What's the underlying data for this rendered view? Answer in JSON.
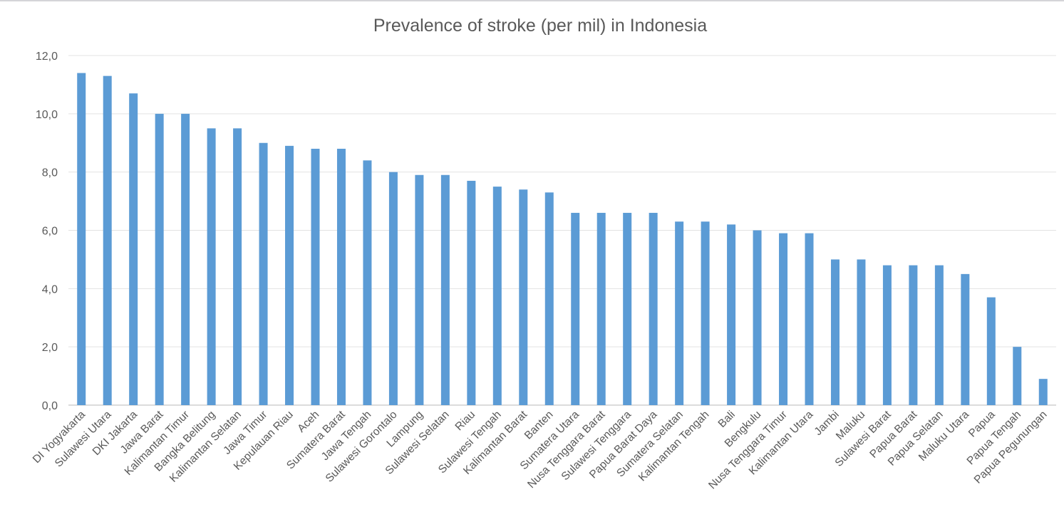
{
  "chart_data": {
    "type": "bar",
    "title": "Prevalence of stroke (per mil) in Indonesia",
    "xlabel": "",
    "ylabel": "",
    "ylim": [
      0,
      12
    ],
    "yticks": [
      "0,0",
      "2,0",
      "4,0",
      "6,0",
      "8,0",
      "10,0",
      "12,0"
    ],
    "grid": true,
    "legend": "none",
    "bar_color": "#5b9bd5",
    "categories": [
      "DI Yogyakarta",
      "Sulawesi Utara",
      "DKI Jakarta",
      "Jawa Barat",
      "Kalimantan Timur",
      "Bangka Belitung",
      "Kalimantan Selatan",
      "Jawa Timur",
      "Kepulauan Riau",
      "Aceh",
      "Sumatera Barat",
      "Jawa Tengah",
      "Sulawesi Gorontalo",
      "Lampung",
      "Sulawesi Selatan",
      "Riau",
      "Sulawesi Tengah",
      "Kalimantan Barat",
      "Banten",
      "Sumatera Utara",
      "Nusa Tenggara Barat",
      "Sulawesi Tenggara",
      "Papua Barat Daya",
      "Sumatera Selatan",
      "Kalimantan Tengah",
      "Bali",
      "Bengkulu",
      "Nusa Tenggara Timur",
      "Kalimantan Utara",
      "Jambi",
      "Maluku",
      "Sulawesi Barat",
      "Papua Barat",
      "Papua Selatan",
      "Maluku Utara",
      "Papua",
      "Papua Tengah",
      "Papua Pegunungan"
    ],
    "values": [
      11.4,
      11.3,
      10.7,
      10.0,
      10.0,
      9.5,
      9.5,
      9.0,
      8.9,
      8.8,
      8.8,
      8.4,
      8.0,
      7.9,
      7.9,
      7.7,
      7.5,
      7.4,
      7.3,
      6.6,
      6.6,
      6.6,
      6.6,
      6.3,
      6.3,
      6.2,
      6.0,
      5.9,
      5.9,
      5.0,
      5.0,
      4.8,
      4.8,
      4.8,
      4.5,
      3.7,
      2.0,
      0.9
    ]
  }
}
